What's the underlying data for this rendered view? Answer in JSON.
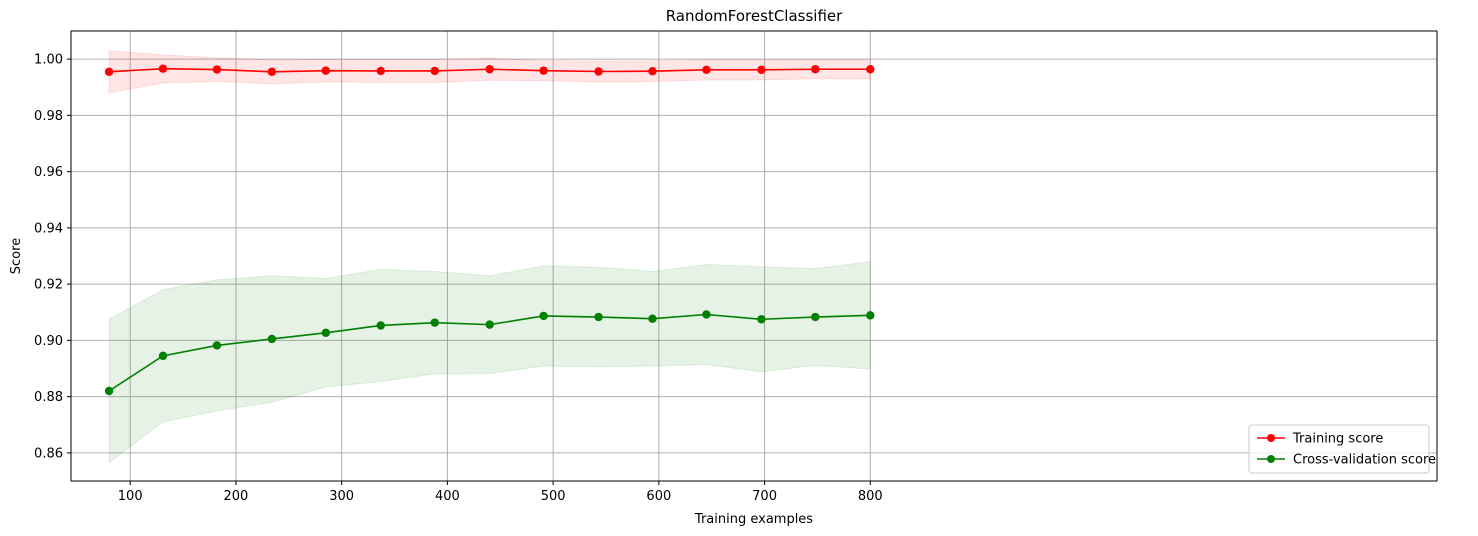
{
  "chart_data": {
    "type": "line",
    "title": "RandomForestClassifier",
    "xlabel": "Training examples",
    "ylabel": "Score",
    "xlim": [
      44,
      1336
    ],
    "ylim": [
      0.85,
      1.01
    ],
    "xticks": [
      100,
      200,
      300,
      400,
      500,
      600,
      700,
      800
    ],
    "yticks": [
      0.86,
      0.88,
      0.9,
      0.92,
      0.94,
      0.96,
      0.98,
      1.0
    ],
    "xtick_labels": [
      "100",
      "200",
      "300",
      "400",
      "500",
      "600",
      "700",
      "800"
    ],
    "ytick_labels": [
      "0.86",
      "0.88",
      "0.90",
      "0.92",
      "0.94",
      "0.96",
      "0.98",
      "1.00"
    ],
    "grid": true,
    "legend_position": "bottom-right",
    "x": [
      80,
      131,
      182,
      234,
      285,
      337,
      388,
      440,
      491,
      543,
      594,
      645,
      697,
      748,
      800
    ],
    "series": [
      {
        "name": "Training score",
        "color": "#ff0000",
        "values": [
          0.9955,
          0.9966,
          0.9963,
          0.9955,
          0.9959,
          0.9958,
          0.9958,
          0.9964,
          0.9959,
          0.9956,
          0.9957,
          0.9962,
          0.9962,
          0.9964,
          0.9964
        ],
        "band_upper": [
          1.003,
          1.0015,
          1.0005,
          0.9998,
          0.9999,
          0.9999,
          0.9999,
          1.0003,
          0.9995,
          0.9993,
          0.9994,
          0.9998,
          0.9998,
          0.9998,
          0.9998
        ],
        "band_lower": [
          0.988,
          0.9915,
          0.9921,
          0.9912,
          0.9919,
          0.9917,
          0.9917,
          0.9925,
          0.9923,
          0.9919,
          0.992,
          0.9926,
          0.9926,
          0.993,
          0.993
        ]
      },
      {
        "name": "Cross-validation score",
        "color": "#008000",
        "values": [
          0.882,
          0.8945,
          0.8982,
          0.9005,
          0.9027,
          0.9053,
          0.9063,
          0.9056,
          0.9087,
          0.9083,
          0.9077,
          0.9092,
          0.9075,
          0.9083,
          0.9089
        ],
        "band_upper": [
          0.9075,
          0.918,
          0.9215,
          0.923,
          0.922,
          0.9252,
          0.9245,
          0.923,
          0.9265,
          0.926,
          0.9245,
          0.927,
          0.9262,
          0.9255,
          0.928
        ],
        "band_lower": [
          0.8565,
          0.871,
          0.8749,
          0.878,
          0.8834,
          0.8854,
          0.8881,
          0.8882,
          0.8909,
          0.8906,
          0.8909,
          0.8914,
          0.8888,
          0.8911,
          0.8898
        ]
      }
    ]
  }
}
